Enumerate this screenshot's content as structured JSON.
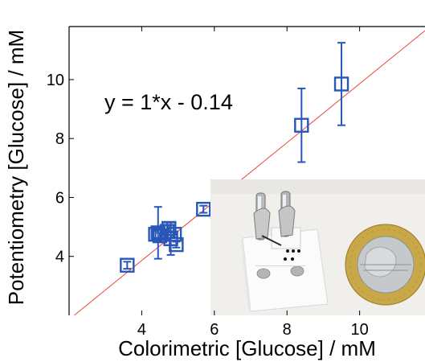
{
  "chart_data": {
    "type": "scatter",
    "xlabel": "Colorimetric [Glucose] / mM",
    "ylabel": "Potentiometry [Glucose] / mM",
    "xlim": [
      2.0,
      11.8
    ],
    "ylim": [
      2.0,
      11.8
    ],
    "x_ticks": [
      "4",
      "6",
      "8",
      "10"
    ],
    "y_ticks": [
      "4",
      "6",
      "8",
      "10"
    ],
    "grid": false,
    "annotation": "y = 1*x - 0.14",
    "fit_line": {
      "slope": 1,
      "intercept": -0.14,
      "color": "#e8463c"
    },
    "marker": {
      "shape": "square",
      "color": "#2857b8"
    },
    "points": [
      {
        "x": 3.6,
        "y": 3.7,
        "err": 0.12
      },
      {
        "x": 4.38,
        "y": 4.75,
        "err": 0.12
      },
      {
        "x": 4.45,
        "y": 4.8,
        "err": 0.88
      },
      {
        "x": 4.5,
        "y": 4.7,
        "err": 0.1
      },
      {
        "x": 4.7,
        "y": 4.85,
        "err": 0.3
      },
      {
        "x": 4.75,
        "y": 4.95,
        "err": 0.1
      },
      {
        "x": 4.8,
        "y": 4.6,
        "err": 0.55
      },
      {
        "x": 4.9,
        "y": 4.75,
        "err": 0.1
      },
      {
        "x": 4.95,
        "y": 4.4,
        "err": 0.1
      },
      {
        "x": 5.7,
        "y": 5.6,
        "err": 0.12
      },
      {
        "x": 8.4,
        "y": 8.45,
        "err": 1.25
      },
      {
        "x": 9.5,
        "y": 9.85,
        "err": 1.4
      }
    ]
  },
  "inset": {
    "type": "photograph",
    "subject": "sensor-device-next-to-euro-coin"
  }
}
